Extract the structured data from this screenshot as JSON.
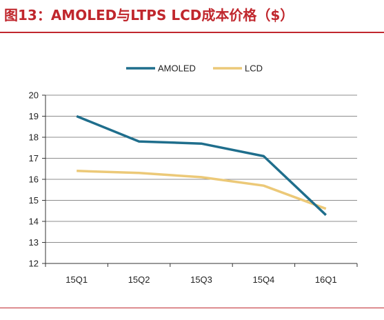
{
  "title": "图13：AMOLED与LTPS LCD成本价格（$）",
  "chart_data": {
    "type": "line",
    "title": "图13：AMOLED与LTPS LCD成本价格（$）",
    "xlabel": "",
    "ylabel": "",
    "categories": [
      "15Q1",
      "15Q2",
      "15Q3",
      "15Q4",
      "16Q1"
    ],
    "ylim": [
      12,
      20
    ],
    "yticks": [
      "12",
      "13",
      "14",
      "15",
      "16",
      "17",
      "18",
      "19",
      "20"
    ],
    "grid": true,
    "legend_position": "top",
    "series": [
      {
        "name": "AMOLED",
        "color": "#1f6e8c",
        "values": [
          19.0,
          17.8,
          17.7,
          17.1,
          14.3
        ]
      },
      {
        "name": "LCD",
        "color": "#ecc978",
        "values": [
          16.4,
          16.3,
          16.1,
          15.7,
          14.6
        ]
      }
    ]
  }
}
